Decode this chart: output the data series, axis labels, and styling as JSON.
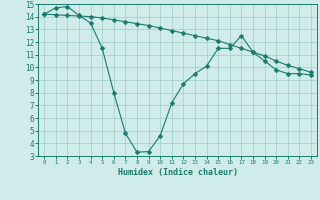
{
  "line1_x": [
    0,
    1,
    2,
    3,
    4,
    5,
    6,
    7,
    8,
    9,
    10,
    11,
    12,
    13,
    14,
    15,
    16,
    17,
    18,
    19,
    20,
    21,
    22,
    23
  ],
  "line1_y": [
    14.2,
    14.15,
    14.1,
    14.05,
    14.0,
    13.9,
    13.75,
    13.6,
    13.45,
    13.3,
    13.1,
    12.9,
    12.7,
    12.5,
    12.3,
    12.1,
    11.8,
    11.5,
    11.2,
    10.9,
    10.5,
    10.15,
    9.9,
    9.6
  ],
  "line2_x": [
    0,
    1,
    2,
    3,
    4,
    5,
    6,
    7,
    8,
    9,
    10,
    11,
    12,
    13,
    14,
    15,
    16,
    17,
    18,
    19,
    20,
    21,
    22,
    23
  ],
  "line2_y": [
    14.2,
    14.7,
    14.8,
    14.1,
    13.5,
    11.5,
    8.0,
    4.8,
    3.3,
    3.35,
    4.6,
    7.2,
    8.7,
    9.5,
    10.1,
    11.5,
    11.5,
    12.5,
    11.2,
    10.5,
    9.8,
    9.5,
    9.5,
    9.4
  ],
  "color": "#1a7a6e",
  "bg_color": "#d0ecea",
  "grid_color": "#a0ccc8",
  "xlabel": "Humidex (Indice chaleur)",
  "xlim": [
    -0.5,
    23.5
  ],
  "ylim": [
    3,
    15
  ],
  "yticks": [
    3,
    4,
    5,
    6,
    7,
    8,
    9,
    10,
    11,
    12,
    13,
    14,
    15
  ],
  "xticks": [
    0,
    1,
    2,
    3,
    4,
    5,
    6,
    7,
    8,
    9,
    10,
    11,
    12,
    13,
    14,
    15,
    16,
    17,
    18,
    19,
    20,
    21,
    22,
    23
  ],
  "markersize": 2.5,
  "linewidth": 0.8,
  "font_family": "monospace"
}
